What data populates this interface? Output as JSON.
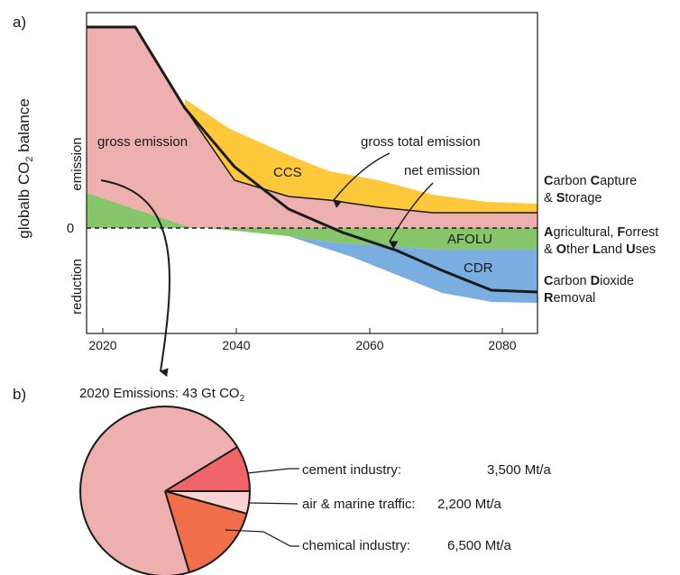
{
  "panel_a": {
    "tag": "a)",
    "y_axis": {
      "title_pre": "globalb CO",
      "title_sub": "2",
      "title_post": " balance",
      "emission_label": "emission",
      "reduction_label": "reduction",
      "zero_label": "0"
    },
    "x_ticks": [
      "2020",
      "2040",
      "2060",
      "2080"
    ],
    "labels": {
      "gross_emission": "gross emission",
      "ccs": "CCS",
      "gross_total_emission": "gross total emission",
      "net_emission": "net emission",
      "afolu": "AFOLU",
      "cdr": "CDR"
    },
    "legend": {
      "ccs": [
        [
          [
            "C",
            "b"
          ],
          [
            "arbon ",
            ""
          ],
          [
            "C",
            "b"
          ],
          [
            "apture",
            ""
          ]
        ],
        [
          [
            "& ",
            ""
          ],
          [
            "S",
            "b"
          ],
          [
            "torage",
            ""
          ]
        ]
      ],
      "afolu": [
        [
          [
            "A",
            "b"
          ],
          [
            "gricultural, ",
            ""
          ],
          [
            "F",
            "b"
          ],
          [
            "orrest",
            ""
          ]
        ],
        [
          [
            "& ",
            ""
          ],
          [
            "O",
            "b"
          ],
          [
            "ther ",
            ""
          ],
          [
            "L",
            "b"
          ],
          [
            "and ",
            ""
          ],
          [
            "U",
            "b"
          ],
          [
            "ses",
            ""
          ]
        ]
      ],
      "cdr": [
        [
          [
            "C",
            "b"
          ],
          [
            "arbon ",
            ""
          ],
          [
            "D",
            "b"
          ],
          [
            "ioxide",
            ""
          ]
        ],
        [
          [
            "R",
            "b"
          ],
          [
            "emoval",
            ""
          ]
        ]
      ]
    },
    "colors": {
      "gross": "#edb0ae",
      "ccs": "#fdc93a",
      "afolu": "#86c56a",
      "cdr": "#7aaee0"
    }
  },
  "panel_b": {
    "tag": "b)",
    "title_pre": "2020 Emissions: 43 Gt CO",
    "title_sub": "2",
    "slices": [
      {
        "label": "cement industry:",
        "value": "3,500 Mt/a",
        "color": "#f0646a"
      },
      {
        "label": "air & marine traffic:",
        "value": "2,200 Mt/a",
        "color": "#fad3d3"
      },
      {
        "label": "chemical industry:",
        "value": "6,500 Mt/a",
        "color": "#f06e4a"
      }
    ],
    "rest_color": "#edb0ae"
  }
}
